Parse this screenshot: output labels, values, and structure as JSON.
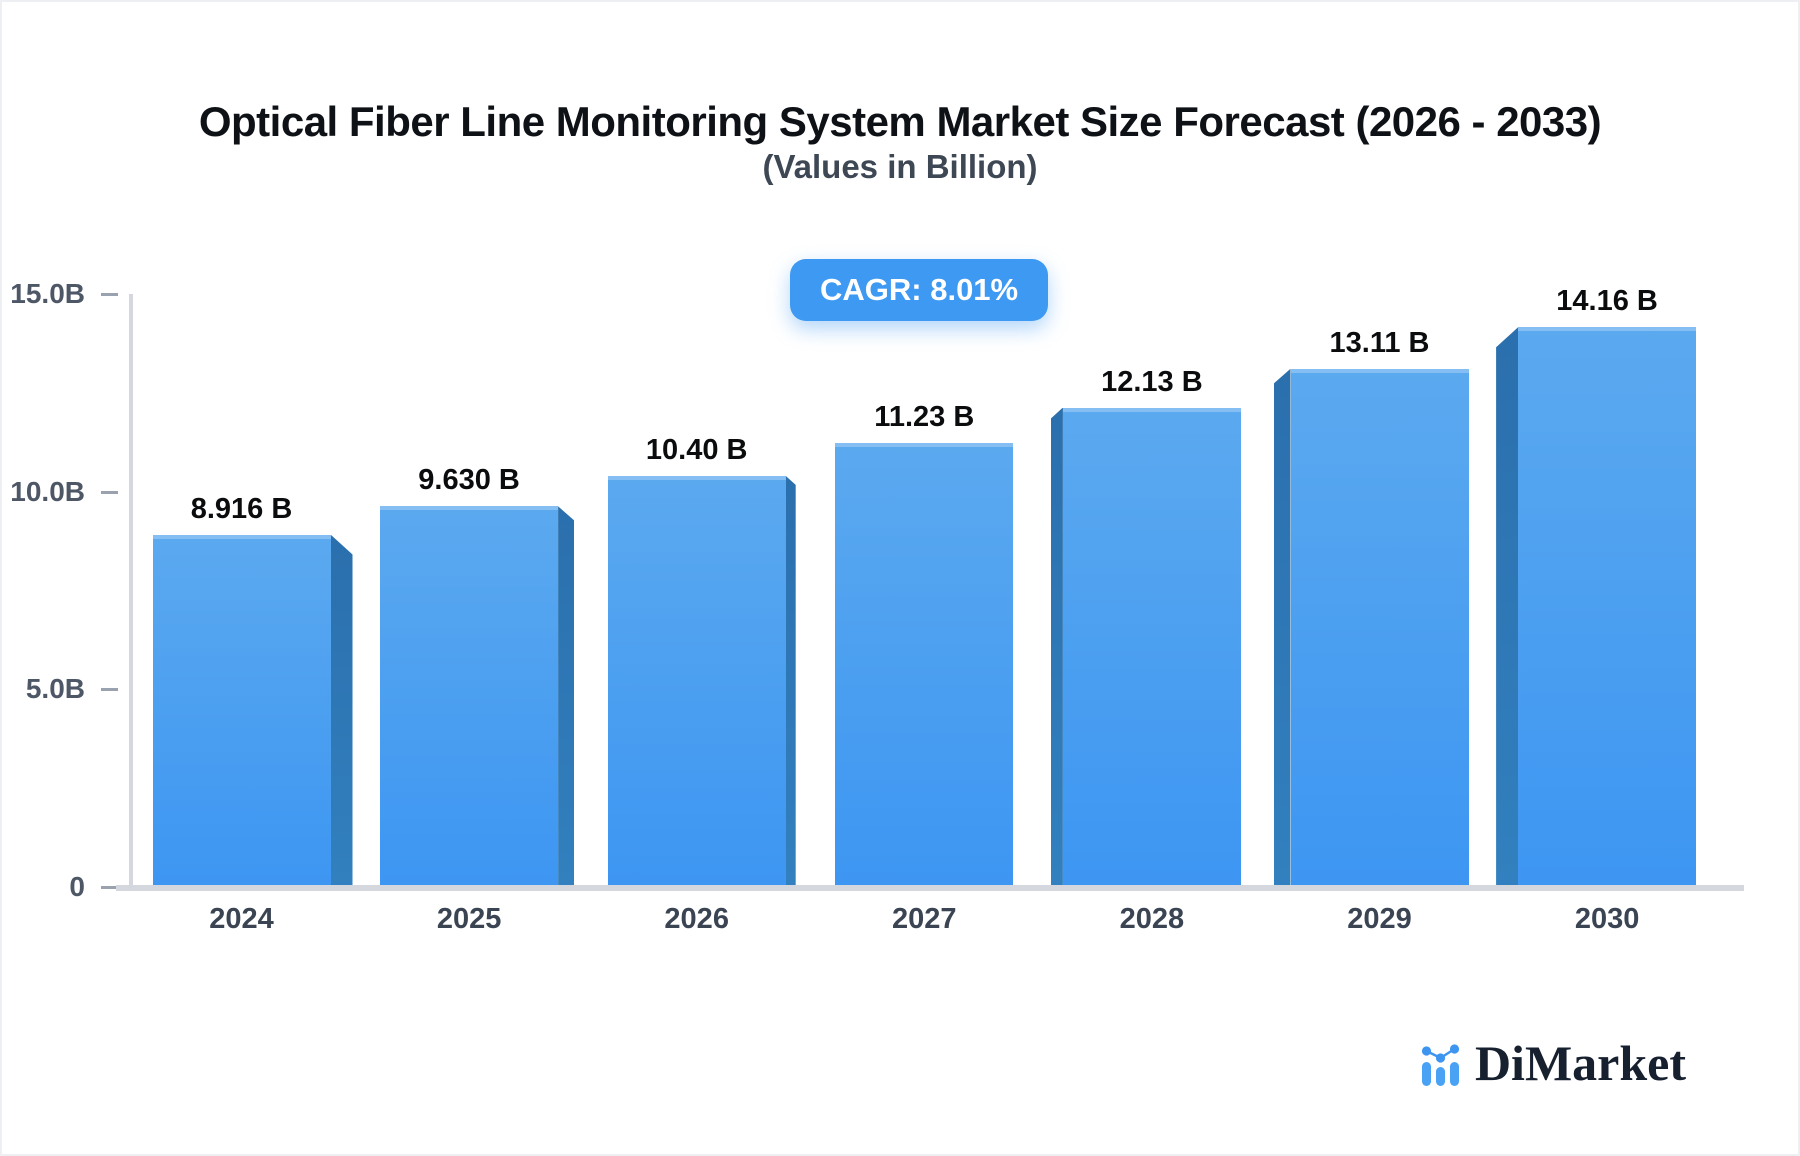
{
  "header": {
    "title": "Optical Fiber Line Monitoring System Market Size Forecast (2026 - 2033)",
    "subtitle": "(Values in Billion)"
  },
  "badge": {
    "label": "CAGR: 8.01%"
  },
  "chart_data": {
    "type": "bar",
    "title": "Optical Fiber Line Monitoring System Market Size Forecast (2026 - 2033)",
    "subtitle": "(Values in Billion)",
    "cagr_annotation": "CAGR: 8.01%",
    "categories": [
      "2024",
      "2025",
      "2026",
      "2027",
      "2028",
      "2029",
      "2030"
    ],
    "values": [
      8.916,
      9.63,
      10.4,
      11.23,
      12.13,
      13.11,
      14.16
    ],
    "value_labels": [
      "8.916 B",
      "9.630 B",
      "10.40 B",
      "11.23 B",
      "12.13 B",
      "13.11 B",
      "14.16 B"
    ],
    "xlabel": "",
    "ylabel": "",
    "ylim": [
      0,
      15
    ],
    "yticks": [
      {
        "value": 0,
        "label": "0"
      },
      {
        "value": 5,
        "label": "5.0B"
      },
      {
        "value": 10,
        "label": "10.0B"
      },
      {
        "value": 15,
        "label": "15.0B"
      }
    ],
    "grid": false,
    "legend": false,
    "bar_style": "3d-perspective-toward-center"
  },
  "colors": {
    "accent": "#3E99F2",
    "bar_face_top": "#5BA9EF",
    "bar_face_bottom": "#3D96F2",
    "bar_side": "#2E76B5",
    "bar_top_edge": "#85BEF2",
    "axis_line": "#D4D8DE",
    "tick_text": "#4D5766",
    "x_label_text": "#3A4453",
    "value_label_text": "#0A0C0E",
    "title_text": "#0E1116",
    "subtitle_text": "#3E4754",
    "logo_navy": "#16202F",
    "logo_blue": "#4AA2F5"
  },
  "logo": {
    "text": "DiMarket",
    "icon": "mini-bar-line-chart-icon"
  }
}
